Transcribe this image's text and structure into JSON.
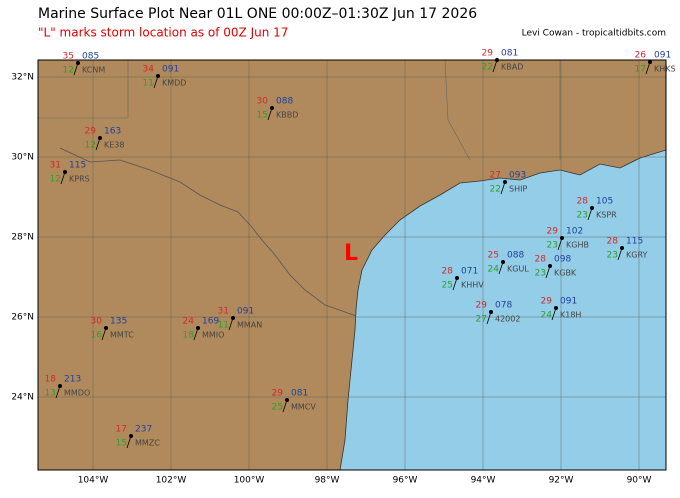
{
  "header": {
    "title": "Marine Surface Plot Near 01L ONE 00:00Z–01:30Z Jun 17 2026",
    "subtitle": "\"L\" marks storm location as of 00Z Jun 17",
    "credit": "Levi Cowan - tropicaltidbits.com"
  },
  "storm_marker": "L",
  "lat_ticks": [
    {
      "value": 32,
      "label": "32°N"
    },
    {
      "value": 30,
      "label": "30°N"
    },
    {
      "value": 28,
      "label": "28°N"
    },
    {
      "value": 26,
      "label": "26°N"
    },
    {
      "value": 24,
      "label": "24°N"
    }
  ],
  "lon_ticks": [
    {
      "value": -104,
      "label": "104°W"
    },
    {
      "value": -102,
      "label": "102°W"
    },
    {
      "value": -100,
      "label": "100°W"
    },
    {
      "value": -98,
      "label": "98°W"
    },
    {
      "value": -96,
      "label": "96°W"
    },
    {
      "value": -94,
      "label": "94°W"
    },
    {
      "value": -92,
      "label": "92°W"
    },
    {
      "value": -90,
      "label": "90°W"
    }
  ],
  "stations": [
    {
      "id": "KCNM",
      "temp": 35,
      "dew": 12,
      "pres": "085"
    },
    {
      "id": "KMDD",
      "temp": 34,
      "dew": 11,
      "pres": "091"
    },
    {
      "id": "KE38",
      "temp": 29,
      "dew": 12,
      "pres": "163"
    },
    {
      "id": "KPRS",
      "temp": 31,
      "dew": 12,
      "pres": "115"
    },
    {
      "id": "KBBD",
      "temp": 30,
      "dew": 15,
      "pres": "088"
    },
    {
      "id": "KBAD",
      "temp": 29,
      "dew": 22,
      "pres": "081"
    },
    {
      "id": "KHKS",
      "temp": 26,
      "dew": 17,
      "pres": "091"
    },
    {
      "id": "SHIP",
      "temp": 27,
      "dew": 22,
      "pres": "093"
    },
    {
      "id": "KSPR",
      "temp": 28,
      "dew": 23,
      "pres": "105"
    },
    {
      "id": "KGHB",
      "temp": 29,
      "dew": 23,
      "pres": "102"
    },
    {
      "id": "KGRY",
      "temp": 28,
      "dew": 23,
      "pres": "115"
    },
    {
      "id": "KGBK",
      "temp": 28,
      "dew": 23,
      "pres": "098"
    },
    {
      "id": "KGUL",
      "temp": 25,
      "dew": 24,
      "pres": "088"
    },
    {
      "id": "KHHV",
      "temp": 28,
      "dew": 25,
      "pres": "071"
    },
    {
      "id": "42002",
      "temp": 29,
      "dew": 27,
      "pres": "078"
    },
    {
      "id": "K18H",
      "temp": 29,
      "dew": 24,
      "pres": "091"
    },
    {
      "id": "MMAN",
      "temp": 31,
      "dew": 11,
      "pres": "091"
    },
    {
      "id": "MMTC",
      "temp": 30,
      "dew": 16,
      "pres": "135"
    },
    {
      "id": "MMIO",
      "temp": 24,
      "dew": 18,
      "pres": "169"
    },
    {
      "id": "MMDO",
      "temp": 18,
      "dew": 13,
      "pres": "213"
    },
    {
      "id": "MMZC",
      "temp": 17,
      "dew": 15,
      "pres": "237"
    },
    {
      "id": "MMCV",
      "temp": 29,
      "dew": 25,
      "pres": "081"
    }
  ]
}
